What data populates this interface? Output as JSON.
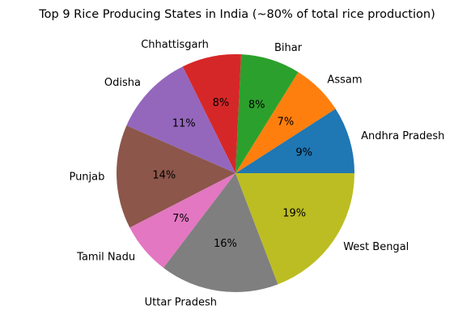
{
  "chart_data": {
    "type": "pie",
    "title": "Top 9 Rice Producing States in India (~80% of total rice production)",
    "categories": [
      "Andhra Pradesh",
      "Assam",
      "Bihar",
      "Chhattisgarh",
      "Odisha",
      "Punjab",
      "Tamil Nadu",
      "Uttar Pradesh",
      "West Bengal"
    ],
    "values": [
      9,
      7,
      8,
      8,
      11,
      14,
      7,
      16,
      19
    ],
    "labels_pct": [
      "9%",
      "7%",
      "8%",
      "8%",
      "11%",
      "14%",
      "7%",
      "16%",
      "19%"
    ],
    "colors": [
      "#1f77b4",
      "#ff7f0e",
      "#2ca02c",
      "#d62728",
      "#9467bd",
      "#8c564b",
      "#e377c2",
      "#7f7f7f",
      "#bcbd22"
    ],
    "start_angle_deg": 0,
    "direction": "counterclockwise",
    "legend": "none"
  }
}
